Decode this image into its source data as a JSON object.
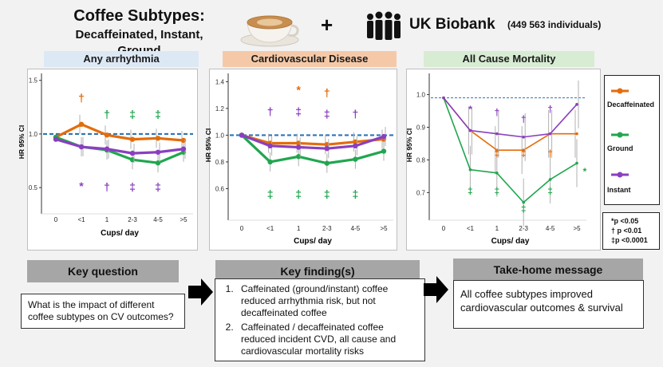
{
  "header": {
    "title_line1": "Coffee Subtypes:",
    "title_line2": "Decaffeinated, Instant, Ground",
    "plus": "+",
    "cohort": "UK Biobank",
    "participants": "(449 563 individuals)",
    "cup_icon": "coffee-cup-icon",
    "people_icon": "people-group-icon"
  },
  "colors": {
    "decaffeinated": "#e46c0a",
    "ground": "#21a64f",
    "instant": "#8a3fbf",
    "reference": "#2e74b5",
    "errorbar": "#b0b0b0"
  },
  "legend": {
    "items": [
      {
        "key": "decaffeinated",
        "label": "Decaffeinated"
      },
      {
        "key": "ground",
        "label": "Ground"
      },
      {
        "key": "instant",
        "label": "Instant"
      }
    ]
  },
  "significance": {
    "lines": [
      "*p <0.05",
      "† p <0.01",
      "‡p <0.0001"
    ]
  },
  "chart_data": [
    {
      "type": "line",
      "title": "Any arrhythmia",
      "ylabel": "HR 95% CI",
      "xlabel": "Cups/ day",
      "categories": [
        "0",
        "<1",
        "1",
        "2-3",
        "4-5",
        ">5"
      ],
      "y_ticks": [
        "0.5",
        "1.0",
        "1.5"
      ],
      "ylim": [
        0.3,
        1.55
      ],
      "reference_line": 1.0,
      "series": [
        {
          "key": "decaffeinated",
          "values": [
            0.97,
            1.09,
            0.99,
            0.95,
            0.96,
            0.94
          ]
        },
        {
          "key": "ground",
          "values": [
            0.97,
            0.88,
            0.85,
            0.76,
            0.73,
            0.83
          ]
        },
        {
          "key": "instant",
          "values": [
            0.95,
            0.88,
            0.86,
            0.82,
            0.83,
            0.86
          ]
        }
      ],
      "annotations": [
        {
          "cat": 1,
          "value": 1.3,
          "text": "†",
          "key": "decaffeinated"
        },
        {
          "cat": 2,
          "value": 1.15,
          "text": "†",
          "key": "ground"
        },
        {
          "cat": 3,
          "value": 1.15,
          "text": "‡",
          "key": "ground"
        },
        {
          "cat": 4,
          "value": 1.15,
          "text": "‡",
          "key": "ground"
        },
        {
          "cat": 1,
          "value": 0.48,
          "text": "*",
          "key": "instant"
        },
        {
          "cat": 2,
          "value": 0.47,
          "text": "†",
          "key": "instant"
        },
        {
          "cat": 3,
          "value": 0.47,
          "text": "‡",
          "key": "instant"
        },
        {
          "cat": 4,
          "value": 0.47,
          "text": "‡",
          "key": "instant"
        }
      ]
    },
    {
      "type": "line",
      "title": "Cardiovascular Disease",
      "ylabel": "HR 95% CI",
      "xlabel": "Cups/ day",
      "categories": [
        "0",
        "<1",
        "1",
        "2-3",
        "4-5",
        ">5"
      ],
      "y_ticks": [
        "0.6",
        "0.8",
        "1.0",
        "1.2",
        "1.4"
      ],
      "ylim": [
        0.4,
        1.45
      ],
      "reference_line": 1.0,
      "series": [
        {
          "key": "decaffeinated",
          "values": [
            1.0,
            0.94,
            0.94,
            0.93,
            0.95,
            0.97
          ]
        },
        {
          "key": "ground",
          "values": [
            1.0,
            0.8,
            0.84,
            0.79,
            0.82,
            0.88
          ]
        },
        {
          "key": "instant",
          "values": [
            1.0,
            0.92,
            0.91,
            0.9,
            0.92,
            0.99
          ]
        }
      ],
      "annotations": [
        {
          "cat": 2,
          "value": 1.31,
          "text": "*",
          "key": "decaffeinated"
        },
        {
          "cat": 3,
          "value": 1.29,
          "text": "†",
          "key": "decaffeinated"
        },
        {
          "cat": 1,
          "value": 1.15,
          "text": "†",
          "key": "instant"
        },
        {
          "cat": 2,
          "value": 1.15,
          "text": "‡",
          "key": "instant"
        },
        {
          "cat": 3,
          "value": 1.13,
          "text": "‡",
          "key": "instant"
        },
        {
          "cat": 4,
          "value": 1.13,
          "text": "†",
          "key": "instant"
        },
        {
          "cat": 1,
          "value": 0.53,
          "text": "‡",
          "key": "ground"
        },
        {
          "cat": 2,
          "value": 0.53,
          "text": "‡",
          "key": "ground"
        },
        {
          "cat": 3,
          "value": 0.53,
          "text": "‡",
          "key": "ground"
        },
        {
          "cat": 4,
          "value": 0.53,
          "text": "‡",
          "key": "ground"
        }
      ]
    },
    {
      "type": "line",
      "title": "All Cause Mortality",
      "ylabel": "HR 95% CI",
      "xlabel": "Cups/ day",
      "categories": [
        "0",
        "<1",
        "1",
        "2-3",
        "4-5",
        ">5"
      ],
      "y_ticks": [
        "0.7",
        "0.8",
        "0.9",
        "1.0"
      ],
      "ylim": [
        0.63,
        1.06
      ],
      "reference_line": 0.99,
      "series": [
        {
          "key": "decaffeinated",
          "values": [
            0.99,
            0.89,
            0.83,
            0.83,
            0.88,
            0.88
          ]
        },
        {
          "key": "ground",
          "values": [
            0.99,
            0.77,
            0.76,
            0.67,
            0.74,
            0.79
          ]
        },
        {
          "key": "instant",
          "values": [
            0.99,
            0.89,
            0.88,
            0.87,
            0.88,
            0.97
          ]
        }
      ],
      "annotations": [
        {
          "cat": 1,
          "value": 0.945,
          "text": "*",
          "key": "instant"
        },
        {
          "cat": 2,
          "value": 0.935,
          "text": "†",
          "key": "instant"
        },
        {
          "cat": 3,
          "value": 0.915,
          "text": "†",
          "key": "instant"
        },
        {
          "cat": 4,
          "value": 0.945,
          "text": "†",
          "key": "instant"
        },
        {
          "cat": 2,
          "value": 0.81,
          "text": "‡",
          "key": "decaffeinated"
        },
        {
          "cat": 3,
          "value": 0.81,
          "text": "‡",
          "key": "decaffeinated"
        },
        {
          "cat": 4,
          "value": 0.81,
          "text": "†",
          "key": "decaffeinated"
        },
        {
          "cat": 1,
          "value": 0.695,
          "text": "‡",
          "key": "ground"
        },
        {
          "cat": 2,
          "value": 0.695,
          "text": "‡",
          "key": "ground"
        },
        {
          "cat": 3,
          "value": 0.64,
          "text": "‡",
          "key": "ground"
        },
        {
          "cat": 4,
          "value": 0.695,
          "text": "‡",
          "key": "ground"
        },
        {
          "cat": 5.3,
          "value": 0.755,
          "text": "*",
          "key": "ground"
        }
      ]
    }
  ],
  "summary": {
    "key_question": {
      "header": "Key question",
      "text": "What is the impact of different coffee  subtypes on CV outcomes?"
    },
    "key_finding": {
      "header": "Key finding(s)",
      "items": [
        "Caffeinated (ground/instant) coffee reduced arrhythmia risk, but not decaffeinated coffee",
        "Caffeinated / decaffeinated coffee reduced incident CVD, all cause and cardiovascular mortality risks"
      ]
    },
    "take_home": {
      "header": "Take-home message",
      "text": "All coffee subtypes improved cardiovascular outcomes & survival"
    }
  }
}
